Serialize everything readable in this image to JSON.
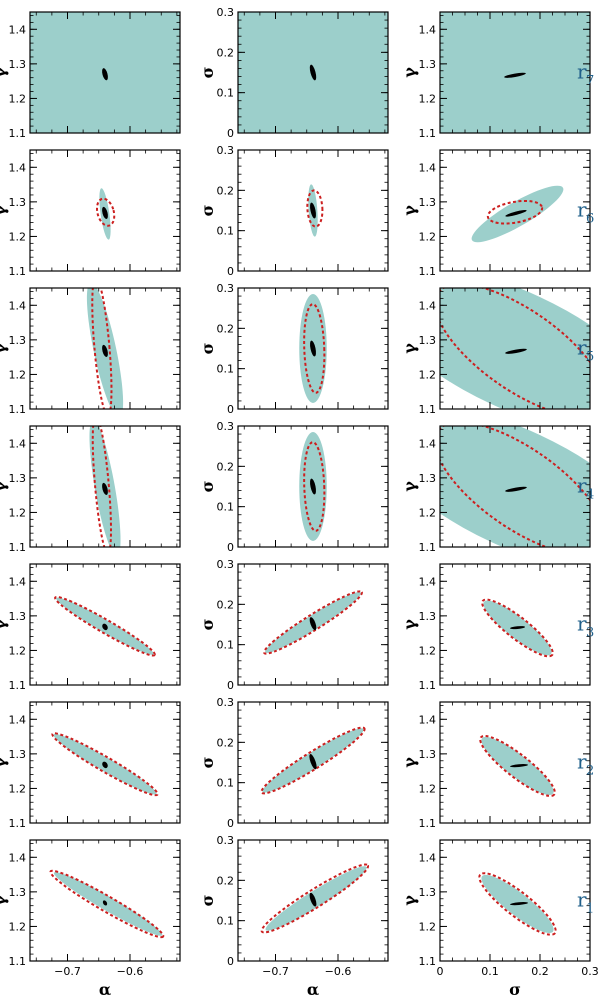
{
  "chart_data": {
    "type": "scatter",
    "description_colors": {
      "filled_region": "#9ccfcb",
      "dashed_region": "#cc1f1f",
      "inner_region": "#000000",
      "row_label": "#1f5f8a"
    },
    "columns": [
      {
        "x_param": "α",
        "y_param": "γ",
        "xlim": [
          -0.76,
          -0.52
        ],
        "ylim": [
          1.1,
          1.45
        ],
        "xticks": [
          -0.7,
          -0.6
        ],
        "xtick_labels": [
          "−0.7",
          "−0.6"
        ],
        "yticks": [
          1.1,
          1.2,
          1.3,
          1.4
        ],
        "ytick_labels": [
          "1.1",
          "1.2",
          "1.3",
          "1.4"
        ]
      },
      {
        "x_param": "α",
        "y_param": "σ",
        "xlim": [
          -0.76,
          -0.52
        ],
        "ylim": [
          0,
          0.3
        ],
        "xticks": [
          -0.7,
          -0.6
        ],
        "xtick_labels": [
          "−0.7",
          "−0.6"
        ],
        "yticks": [
          0,
          0.1,
          0.2,
          0.3
        ],
        "ytick_labels": [
          "0",
          "0.1",
          "0.2",
          "0.3"
        ]
      },
      {
        "x_param": "σ",
        "y_param": "γ",
        "xlim": [
          0,
          0.3
        ],
        "ylim": [
          1.1,
          1.45
        ],
        "xticks": [
          0,
          0.1,
          0.2,
          0.3
        ],
        "xtick_labels": [
          "0",
          "0.1",
          "0.2",
          "0.3"
        ],
        "yticks": [
          1.1,
          1.2,
          1.3,
          1.4
        ],
        "ytick_labels": [
          "1.1",
          "1.2",
          "1.3",
          "1.4"
        ]
      }
    ],
    "rows": [
      {
        "label": "r",
        "sub": "7",
        "panels": [
          {
            "fill": "all",
            "dash": null,
            "inner": {
              "c": [
                -0.64,
                1.27
              ],
              "r": [
                0.004,
                0.018
              ],
              "rot": -15
            }
          },
          {
            "fill": "all",
            "dash": null,
            "inner": {
              "c": [
                -0.64,
                0.15
              ],
              "r": [
                0.004,
                0.02
              ],
              "rot": -15
            }
          },
          {
            "fill": "all",
            "dash": null,
            "inner": {
              "c": [
                0.15,
                1.267
              ],
              "r": [
                0.022,
                0.005
              ],
              "rot": -10
            }
          }
        ]
      },
      {
        "label": "r",
        "sub": "6",
        "panels": [
          {
            "fill": {
              "c": [
                -0.64,
                1.265
              ],
              "r": [
                0.007,
                0.075
              ],
              "rot": -8
            },
            "dash": {
              "c": [
                -0.639,
                1.27
              ],
              "r": [
                0.013,
                0.04
              ],
              "rot": -15
            },
            "inner": {
              "c": [
                -0.64,
                1.268
              ],
              "r": [
                0.004,
                0.018
              ],
              "rot": -15
            }
          },
          {
            "fill": {
              "c": [
                -0.64,
                0.15
              ],
              "r": [
                0.007,
                0.065
              ],
              "rot": -4
            },
            "dash": {
              "c": [
                -0.637,
                0.155
              ],
              "r": [
                0.012,
                0.045
              ],
              "rot": -3
            },
            "inner": {
              "c": [
                -0.64,
                0.15
              ],
              "r": [
                0.004,
                0.02
              ],
              "rot": -12
            }
          },
          {
            "fill": {
              "c": [
                0.155,
                1.265
              ],
              "r": [
                0.105,
                0.035
              ],
              "rot": -30
            },
            "dash": {
              "c": [
                0.15,
                1.27
              ],
              "r": [
                0.055,
                0.03
              ],
              "rot": -10
            },
            "inner": {
              "c": [
                0.152,
                1.267
              ],
              "r": [
                0.022,
                0.005
              ],
              "rot": -15
            }
          }
        ]
      },
      {
        "label": "r",
        "sub": "5",
        "panels": [
          {
            "fill": {
              "c": [
                -0.64,
                1.27
              ],
              "r": [
                0.018,
                0.2
              ],
              "rot": -12
            },
            "dash": {
              "c": [
                -0.645,
                1.28
              ],
              "r": [
                0.012,
                0.2
              ],
              "rot": -5
            },
            "inner": {
              "c": [
                -0.64,
                1.268
              ],
              "r": [
                0.004,
                0.018
              ],
              "rot": -15
            }
          },
          {
            "fill": {
              "c": [
                -0.64,
                0.15
              ],
              "r": [
                0.022,
                0.135
              ],
              "rot": 0
            },
            "dash": {
              "c": [
                -0.638,
                0.15
              ],
              "r": [
                0.016,
                0.11
              ],
              "rot": -2
            },
            "inner": {
              "c": [
                -0.64,
                0.15
              ],
              "r": [
                0.004,
                0.02
              ],
              "rot": -12
            }
          },
          {
            "fill": {
              "c": [
                0.15,
                1.27
              ],
              "r": [
                0.31,
                0.17
              ],
              "rot": 25
            },
            "dash": {
              "c": [
                0.16,
                1.27
              ],
              "r": [
                0.2,
                0.115
              ],
              "rot": 35
            },
            "inner": {
              "c": [
                0.152,
                1.267
              ],
              "r": [
                0.022,
                0.005
              ],
              "rot": -10
            }
          }
        ]
      },
      {
        "label": "r",
        "sub": "4",
        "panels": [
          {
            "fill": {
              "c": [
                -0.64,
                1.27
              ],
              "r": [
                0.016,
                0.2
              ],
              "rot": -10
            },
            "dash": {
              "c": [
                -0.645,
                1.28
              ],
              "r": [
                0.011,
                0.2
              ],
              "rot": -5
            },
            "inner": {
              "c": [
                -0.64,
                1.268
              ],
              "r": [
                0.004,
                0.018
              ],
              "rot": -15
            }
          },
          {
            "fill": {
              "c": [
                -0.64,
                0.15
              ],
              "r": [
                0.022,
                0.135
              ],
              "rot": 0
            },
            "dash": {
              "c": [
                -0.638,
                0.15
              ],
              "r": [
                0.016,
                0.11
              ],
              "rot": -2
            },
            "inner": {
              "c": [
                -0.64,
                0.15
              ],
              "r": [
                0.004,
                0.02
              ],
              "rot": -12
            }
          },
          {
            "fill": {
              "c": [
                0.15,
                1.27
              ],
              "r": [
                0.31,
                0.17
              ],
              "rot": 25
            },
            "dash": {
              "c": [
                0.16,
                1.27
              ],
              "r": [
                0.2,
                0.115
              ],
              "rot": 35
            },
            "inner": {
              "c": [
                0.152,
                1.267
              ],
              "r": [
                0.022,
                0.005
              ],
              "rot": -10
            }
          }
        ]
      },
      {
        "label": "r",
        "sub": "3",
        "panels": [
          {
            "fill": {
              "c": [
                -0.64,
                1.27
              ],
              "r": [
                0.09,
                0.018
              ],
              "rot": 30
            },
            "dash": {
              "c": [
                -0.64,
                1.27
              ],
              "r": [
                0.092,
                0.019
              ],
              "rot": 30
            },
            "inner": {
              "c": [
                -0.64,
                1.268
              ],
              "r": [
                0.004,
                0.01
              ],
              "rot": -30
            }
          },
          {
            "fill": {
              "c": [
                -0.64,
                0.155
              ],
              "r": [
                0.09,
                0.018
              ],
              "rot": -32
            },
            "dash": {
              "c": [
                -0.64,
                0.155
              ],
              "r": [
                0.092,
                0.019
              ],
              "rot": -32
            },
            "inner": {
              "c": [
                -0.64,
                0.152
              ],
              "r": [
                0.004,
                0.017
              ],
              "rot": -20
            }
          },
          {
            "fill": {
              "c": [
                0.155,
                1.265
              ],
              "r": [
                0.085,
                0.03
              ],
              "rot": 38
            },
            "dash": {
              "c": [
                0.155,
                1.265
              ],
              "r": [
                0.088,
                0.031
              ],
              "rot": 38
            },
            "inner": {
              "c": [
                0.155,
                1.266
              ],
              "r": [
                0.015,
                0.004
              ],
              "rot": -5
            }
          }
        ]
      },
      {
        "label": "r",
        "sub": "2",
        "panels": [
          {
            "fill": {
              "c": [
                -0.64,
                1.27
              ],
              "r": [
                0.095,
                0.02
              ],
              "rot": 30
            },
            "dash": {
              "c": [
                -0.64,
                1.27
              ],
              "r": [
                0.097,
                0.021
              ],
              "rot": 30
            },
            "inner": {
              "c": [
                -0.64,
                1.268
              ],
              "r": [
                0.004,
                0.01
              ],
              "rot": -30
            }
          },
          {
            "fill": {
              "c": [
                -0.64,
                0.155
              ],
              "r": [
                0.095,
                0.02
              ],
              "rot": -32
            },
            "dash": {
              "c": [
                -0.64,
                0.155
              ],
              "r": [
                0.097,
                0.021
              ],
              "rot": -32
            },
            "inner": {
              "c": [
                -0.64,
                0.152
              ],
              "r": [
                0.004,
                0.02
              ],
              "rot": -20
            }
          },
          {
            "fill": {
              "c": [
                0.155,
                1.265
              ],
              "r": [
                0.09,
                0.032
              ],
              "rot": 38
            },
            "dash": {
              "c": [
                0.155,
                1.265
              ],
              "r": [
                0.093,
                0.033
              ],
              "rot": 38
            },
            "inner": {
              "c": [
                0.158,
                1.266
              ],
              "r": [
                0.018,
                0.004
              ],
              "rot": -5
            }
          }
        ]
      },
      {
        "label": "r",
        "sub": "1",
        "panels": [
          {
            "fill": {
              "c": [
                -0.635,
                1.265
              ],
              "r": [
                0.1,
                0.02
              ],
              "rot": 30
            },
            "dash": {
              "c": [
                -0.637,
                1.265
              ],
              "r": [
                0.104,
                0.022
              ],
              "rot": 30
            },
            "inner": {
              "c": [
                -0.64,
                1.268
              ],
              "r": [
                0.003,
                0.008
              ],
              "rot": -30
            }
          },
          {
            "fill": {
              "c": [
                -0.635,
                0.155
              ],
              "r": [
                0.095,
                0.02
              ],
              "rot": -32
            },
            "dash": {
              "c": [
                -0.637,
                0.155
              ],
              "r": [
                0.1,
                0.022
              ],
              "rot": -32
            },
            "inner": {
              "c": [
                -0.64,
                0.152
              ],
              "r": [
                0.004,
                0.018
              ],
              "rot": -20
            }
          },
          {
            "fill": {
              "c": [
                0.155,
                1.265
              ],
              "r": [
                0.09,
                0.032
              ],
              "rot": 38
            },
            "dash": {
              "c": [
                0.155,
                1.265
              ],
              "r": [
                0.095,
                0.035
              ],
              "rot": 38
            },
            "inner": {
              "c": [
                0.158,
                1.266
              ],
              "r": [
                0.018,
                0.004
              ],
              "rot": -5
            }
          }
        ]
      }
    ]
  }
}
